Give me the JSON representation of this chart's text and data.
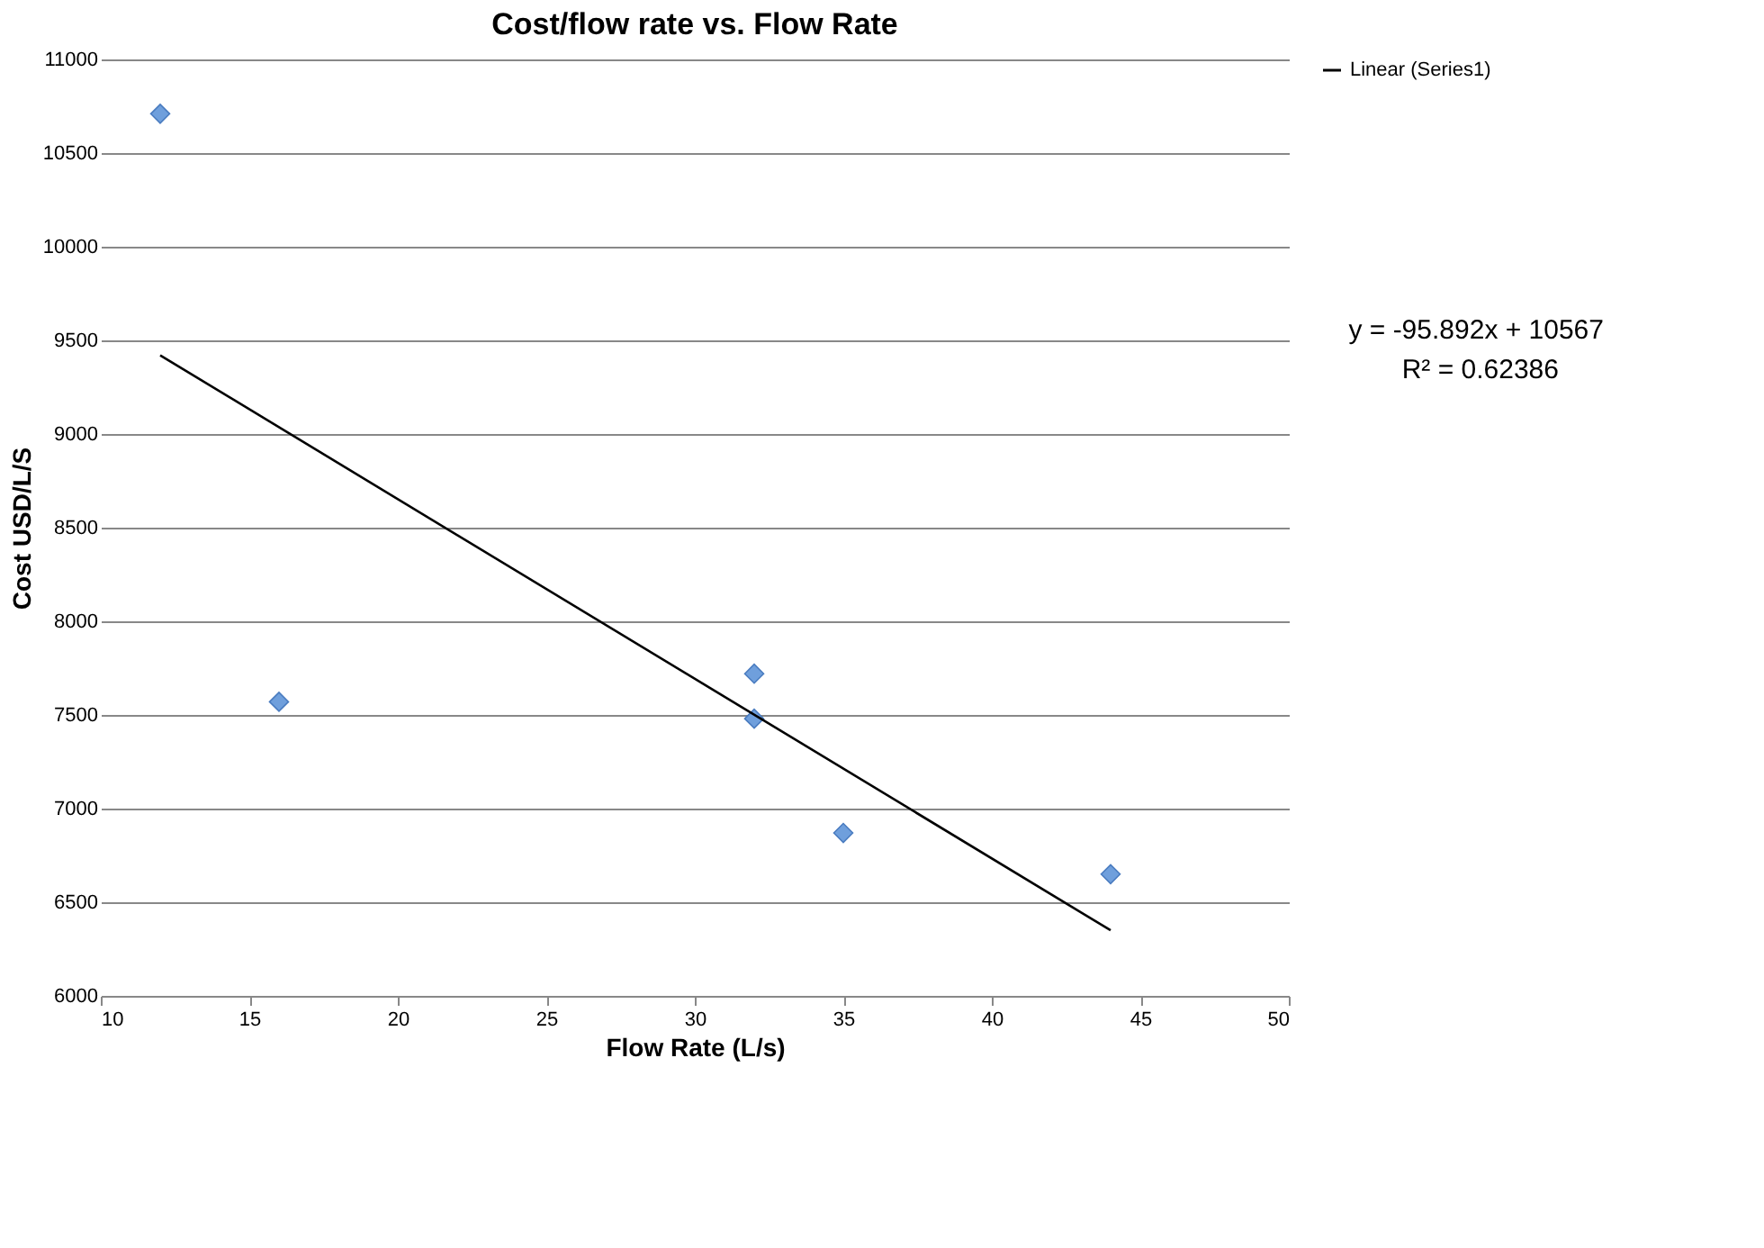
{
  "chart_data": {
    "type": "scatter",
    "title": "Cost/flow rate vs. Flow Rate",
    "xlabel": "Flow Rate (L/s)",
    "ylabel": "Cost USD/L/S",
    "xlim": [
      10,
      50
    ],
    "xticks": [
      10,
      15,
      20,
      25,
      30,
      35,
      40,
      45,
      50
    ],
    "ylim": [
      6000,
      11000
    ],
    "yticks": [
      6000,
      6500,
      7000,
      7500,
      8000,
      8500,
      9000,
      9500,
      10000,
      10500,
      11000
    ],
    "grid": "y",
    "legend": "top right",
    "marker": "diamond",
    "series": [
      {
        "color": "#6f9fdc",
        "x": [
          12,
          16,
          32,
          32,
          35,
          44
        ],
        "values": [
          10710,
          7570,
          7720,
          7480,
          6870,
          6650
        ]
      },
      {
        "name": "Linear (Series1)",
        "type": "line",
        "color": "#000000",
        "x": [
          12,
          44
        ],
        "values": [
          9420,
          6350
        ],
        "marker": "none",
        "line_style": "solid"
      }
    ],
    "annotations": [
      "y = -95.892x + 10567",
      "R² = 0.62386"
    ]
  }
}
